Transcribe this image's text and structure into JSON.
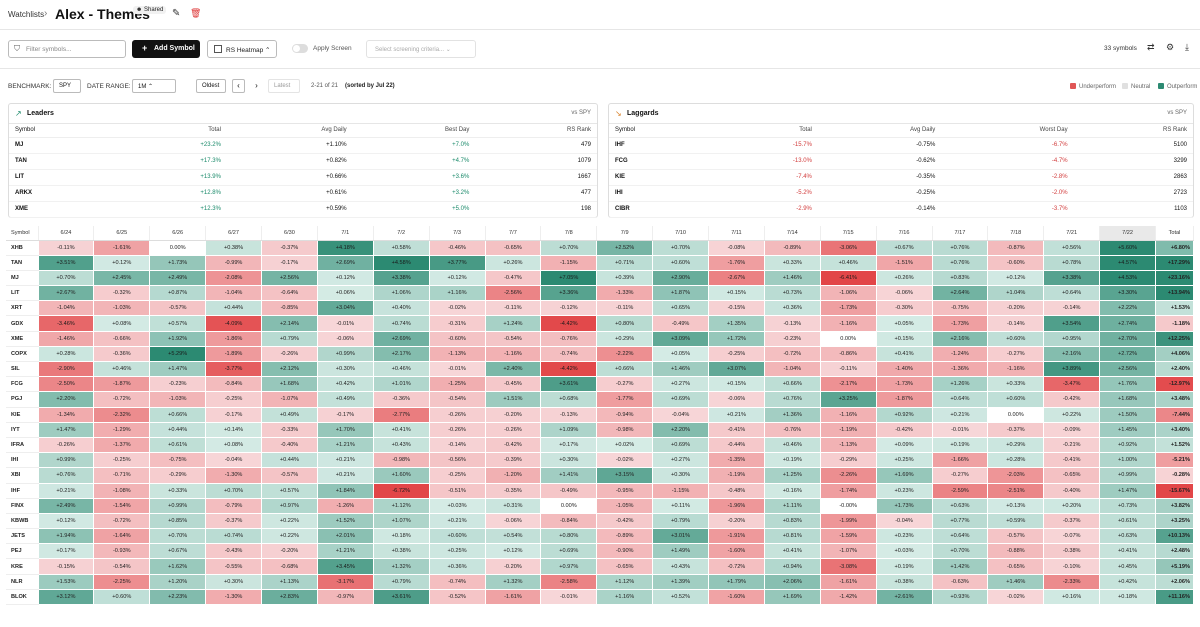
{
  "header": {
    "breadcrumb": "Watchlists",
    "title": "Alex - Themes",
    "shared_badge": "Shared"
  },
  "toolbar": {
    "filter_placeholder": "Filter symbols...",
    "add_symbol": "Add Symbol",
    "rs_heatmap": "RS Heatmap",
    "apply_screen": "Apply Screen",
    "screening_placeholder": "Select screening criteria...",
    "symbol_count": "33 symbols"
  },
  "benchmark": {
    "label": "BENCHMARK:",
    "value": "SPY",
    "date_range_label": "DATE RANGE:",
    "date_range": "1M",
    "oldest": "Oldest",
    "latest": "Latest",
    "range_info": "2-21 of 21",
    "sorted": "(sorted by Jul 22)"
  },
  "legend": {
    "under": "Underperform",
    "neutral": "Neutral",
    "out": "Outperform",
    "under_color": "#e05656",
    "neutral_color": "#e0e0e0",
    "out_color": "#2c8a72"
  },
  "leaders": {
    "title": "Leaders",
    "vs": "vs SPY",
    "headers": [
      "Symbol",
      "Total",
      "Avg Daily",
      "Best Day",
      "RS Rank"
    ],
    "rows": [
      [
        "MJ",
        "+23.2%",
        "+1.10%",
        "+7.0%",
        "479"
      ],
      [
        "TAN",
        "+17.3%",
        "+0.82%",
        "+4.7%",
        "1079"
      ],
      [
        "LIT",
        "+13.9%",
        "+0.66%",
        "+3.6%",
        "1667"
      ],
      [
        "ARKX",
        "+12.8%",
        "+0.61%",
        "+3.2%",
        "477"
      ],
      [
        "XME",
        "+12.3%",
        "+0.59%",
        "+5.0%",
        "198"
      ]
    ]
  },
  "laggards": {
    "title": "Laggards",
    "vs": "vs SPY",
    "headers": [
      "Symbol",
      "Total",
      "Avg Daily",
      "Worst Day",
      "RS Rank"
    ],
    "rows": [
      [
        "IHF",
        "-15.7%",
        "-0.75%",
        "-6.7%",
        "5100"
      ],
      [
        "FCG",
        "-13.0%",
        "-0.62%",
        "-4.7%",
        "3299"
      ],
      [
        "KIE",
        "-7.4%",
        "-0.35%",
        "-2.8%",
        "2863"
      ],
      [
        "IHI",
        "-5.2%",
        "-0.25%",
        "-2.0%",
        "2723"
      ],
      [
        "CIBR",
        "-2.9%",
        "-0.14%",
        "-3.7%",
        "1103"
      ]
    ]
  },
  "heatmap": {
    "symbol_header": "Symbol",
    "total_header": "Total",
    "dates": [
      "6/24",
      "6/25",
      "6/26",
      "6/27",
      "6/30",
      "7/1",
      "7/2",
      "7/3",
      "7/7",
      "7/8",
      "7/9",
      "7/10",
      "7/11",
      "7/14",
      "7/15",
      "7/16",
      "7/17",
      "7/18",
      "7/21",
      "7/22"
    ],
    "rows": [
      {
        "s": "XHB",
        "v": [
          "-0.11%",
          "-1.61%",
          "0.00%",
          "+0.38%",
          "-0.37%",
          "+4.18%",
          "+0.58%",
          "-0.46%",
          "-0.65%",
          "+0.70%",
          "+2.52%",
          "+0.70%",
          "-0.08%",
          "-0.89%",
          "-3.06%",
          "+0.67%",
          "+0.76%",
          "-0.87%",
          "+0.56%",
          "+5.60%"
        ],
        "t": "+6.80%"
      },
      {
        "s": "TAN",
        "v": [
          "+3.51%",
          "+0.12%",
          "+1.73%",
          "-0.99%",
          "-0.17%",
          "+2.69%",
          "+4.58%",
          "+3.77%",
          "+0.26%",
          "-1.15%",
          "+0.71%",
          "+0.60%",
          "-1.76%",
          "+0.33%",
          "+0.46%",
          "-1.51%",
          "+0.76%",
          "-0.60%",
          "+0.78%",
          "+4.57%"
        ],
        "t": "+17.29%"
      },
      {
        "s": "MJ",
        "v": [
          "+0.70%",
          "+2.45%",
          "+2.49%",
          "-2.08%",
          "+2.56%",
          "+0.12%",
          "+3.38%",
          "+0.12%",
          "-0.47%",
          "+7.05%",
          "+0.39%",
          "+2.90%",
          "-2.67%",
          "+1.46%",
          "-6.41%",
          "+0.26%",
          "+0.83%",
          "+0.12%",
          "+3.38%",
          "+4.53%"
        ],
        "t": "+23.16%"
      },
      {
        "s": "LIT",
        "v": [
          "+2.67%",
          "-0.32%",
          "+0.87%",
          "-1.04%",
          "-0.64%",
          "+0.06%",
          "+1.06%",
          "+1.16%",
          "-2.56%",
          "+3.36%",
          "-1.33%",
          "+1.87%",
          "+0.15%",
          "+0.73%",
          "-1.06%",
          "-0.06%",
          "+2.64%",
          "+1.04%",
          "+0.64%",
          "+3.30%"
        ],
        "t": "+13.94%"
      },
      {
        "s": "XRT",
        "v": [
          "-1.04%",
          "-1.03%",
          "-0.57%",
          "+0.44%",
          "-0.85%",
          "+3.04%",
          "+0.40%",
          "-0.02%",
          "-0.11%",
          "-0.12%",
          "-0.11%",
          "+0.65%",
          "-0.15%",
          "+0.36%",
          "-1.73%",
          "-0.30%",
          "-0.75%",
          "-0.20%",
          "-0.14%",
          "+2.22%"
        ],
        "t": "+1.53%"
      },
      {
        "s": "GDX",
        "v": [
          "-3.46%",
          "+0.08%",
          "+0.57%",
          "-4.09%",
          "+2.14%",
          "-0.01%",
          "+0.74%",
          "-0.31%",
          "+1.24%",
          "-4.42%",
          "+0.80%",
          "-0.49%",
          "+1.35%",
          "-0.13%",
          "-1.16%",
          "+0.05%",
          "-1.73%",
          "-0.14%",
          "+3.54%",
          "+2.74%"
        ],
        "t": "-1.18%"
      },
      {
        "s": "XME",
        "v": [
          "-1.46%",
          "-0.66%",
          "+1.92%",
          "-1.86%",
          "+0.79%",
          "-0.06%",
          "+2.69%",
          "-0.60%",
          "-0.54%",
          "-0.76%",
          "+0.29%",
          "+3.09%",
          "+1.72%",
          "-0.23%",
          "0.00%",
          "+0.15%",
          "+2.16%",
          "+0.60%",
          "+0.95%",
          "+2.70%"
        ],
        "t": "+12.25%"
      },
      {
        "s": "COPX",
        "v": [
          "+0.28%",
          "-0.36%",
          "+5.29%",
          "-1.89%",
          "-0.26%",
          "+0.99%",
          "+2.17%",
          "-1.13%",
          "-1.16%",
          "-0.74%",
          "-2.22%",
          "+0.05%",
          "-0.25%",
          "-0.72%",
          "-0.86%",
          "+0.41%",
          "-1.24%",
          "-0.27%",
          "+2.16%",
          "+2.72%"
        ],
        "t": "+4.06%"
      },
      {
        "s": "SIL",
        "v": [
          "-2.90%",
          "+0.46%",
          "+1.47%",
          "-3.77%",
          "+2.12%",
          "+0.30%",
          "+0.46%",
          "-0.01%",
          "+2.40%",
          "-4.42%",
          "+0.66%",
          "+1.46%",
          "+3.07%",
          "-1.04%",
          "-0.11%",
          "-1.40%",
          "-1.36%",
          "-1.16%",
          "+3.89%",
          "+2.56%"
        ],
        "t": "+2.40%"
      },
      {
        "s": "FCG",
        "v": [
          "-2.50%",
          "-1.87%",
          "-0.23%",
          "-0.84%",
          "+1.68%",
          "+0.42%",
          "+1.01%",
          "-1.25%",
          "-0.45%",
          "+3.61%",
          "-0.27%",
          "+0.27%",
          "+0.15%",
          "+0.66%",
          "-2.17%",
          "-1.73%",
          "+1.26%",
          "+0.33%",
          "-3.47%",
          "+1.76%"
        ],
        "t": "-12.97%"
      },
      {
        "s": "PGJ",
        "v": [
          "+2.20%",
          "-0.72%",
          "-1.03%",
          "-0.25%",
          "-1.07%",
          "+0.49%",
          "-0.36%",
          "-0.54%",
          "+1.51%",
          "+0.68%",
          "-1.77%",
          "+0.69%",
          "-0.06%",
          "+0.76%",
          "+3.25%",
          "-1.87%",
          "+0.64%",
          "+0.60%",
          "-0.42%",
          "+1.68%"
        ],
        "t": "+3.48%"
      },
      {
        "s": "KIE",
        "v": [
          "-1.34%",
          "-2.32%",
          "+0.66%",
          "-0.17%",
          "+0.49%",
          "-0.17%",
          "-2.77%",
          "-0.26%",
          "-0.20%",
          "-0.13%",
          "-0.94%",
          "-0.04%",
          "+0.21%",
          "+1.36%",
          "-1.16%",
          "+0.92%",
          "+0.21%",
          "0.00%",
          "+0.22%",
          "+1.50%"
        ],
        "t": "-7.44%"
      },
      {
        "s": "IYT",
        "v": [
          "+1.47%",
          "-1.29%",
          "+0.44%",
          "+0.14%",
          "-0.33%",
          "+1.70%",
          "+0.41%",
          "-0.26%",
          "-0.26%",
          "+1.09%",
          "-0.98%",
          "+2.20%",
          "-0.41%",
          "-0.76%",
          "-1.19%",
          "-0.42%",
          "-0.01%",
          "-0.37%",
          "-0.09%",
          "+1.45%"
        ],
        "t": "+3.40%"
      },
      {
        "s": "IFRA",
        "v": [
          "-0.26%",
          "-1.37%",
          "+0.61%",
          "+0.08%",
          "-0.40%",
          "+1.21%",
          "+0.43%",
          "-0.14%",
          "-0.42%",
          "+0.17%",
          "+0.02%",
          "+0.69%",
          "-0.44%",
          "+0.46%",
          "-1.13%",
          "+0.09%",
          "+0.19%",
          "+0.29%",
          "-0.21%",
          "+0.92%"
        ],
        "t": "+1.52%"
      },
      {
        "s": "IHI",
        "v": [
          "+0.99%",
          "-0.25%",
          "-0.75%",
          "-0.04%",
          "+0.44%",
          "+0.21%",
          "-0.98%",
          "-0.56%",
          "-0.39%",
          "+0.30%",
          "-0.02%",
          "+0.27%",
          "-1.35%",
          "+0.19%",
          "-0.29%",
          "+0.25%",
          "-1.66%",
          "+0.28%",
          "-0.41%",
          "+1.00%"
        ],
        "t": "-5.21%"
      },
      {
        "s": "XBI",
        "v": [
          "+0.76%",
          "-0.71%",
          "-0.29%",
          "-1.30%",
          "-0.57%",
          "+0.21%",
          "+1.60%",
          "-0.25%",
          "-1.20%",
          "+1.41%",
          "+3.15%",
          "+0.30%",
          "-1.19%",
          "+1.25%",
          "-2.26%",
          "+1.69%",
          "-0.27%",
          "-2.03%",
          "-0.65%",
          "+0.99%"
        ],
        "t": "-0.28%"
      },
      {
        "s": "IHF",
        "v": [
          "+0.21%",
          "-1.08%",
          "+0.33%",
          "+0.70%",
          "+0.57%",
          "+1.84%",
          "-6.72%",
          "-0.51%",
          "-0.35%",
          "-0.49%",
          "-0.95%",
          "-1.15%",
          "-0.48%",
          "+0.16%",
          "-1.74%",
          "+0.23%",
          "-2.59%",
          "-2.51%",
          "-0.40%",
          "+1.47%"
        ],
        "t": "-15.67%"
      },
      {
        "s": "FINX",
        "v": [
          "+2.49%",
          "-1.54%",
          "+0.99%",
          "-0.79%",
          "+0.97%",
          "-1.26%",
          "+1.12%",
          "+0.03%",
          "+0.31%",
          "0.00%",
          "-1.05%",
          "+0.11%",
          "-1.96%",
          "+1.11%",
          "-0.00%",
          "+1.73%",
          "+0.63%",
          "+0.13%",
          "+0.20%",
          "+0.73%"
        ],
        "t": "+3.82%"
      },
      {
        "s": "KBWB",
        "v": [
          "+0.12%",
          "-0.72%",
          "+0.85%",
          "-0.37%",
          "+0.22%",
          "+1.52%",
          "+1.07%",
          "+0.21%",
          "-0.06%",
          "-0.84%",
          "-0.42%",
          "+0.79%",
          "-0.20%",
          "+0.83%",
          "-1.99%",
          "-0.04%",
          "+0.77%",
          "+0.59%",
          "-0.37%",
          "+0.61%"
        ],
        "t": "+3.25%"
      },
      {
        "s": "JETS",
        "v": [
          "+1.94%",
          "-1.64%",
          "+0.70%",
          "+0.74%",
          "+0.22%",
          "+2.01%",
          "+0.18%",
          "+0.60%",
          "+0.54%",
          "+0.80%",
          "-0.89%",
          "+3.01%",
          "-1.91%",
          "+0.81%",
          "-1.59%",
          "+0.23%",
          "+0.64%",
          "-0.57%",
          "-0.07%",
          "+0.63%"
        ],
        "t": "+10.13%"
      },
      {
        "s": "PEJ",
        "v": [
          "+0.17%",
          "-0.93%",
          "+0.67%",
          "-0.43%",
          "-0.20%",
          "+1.21%",
          "+0.38%",
          "+0.25%",
          "+0.12%",
          "+0.69%",
          "-0.90%",
          "+1.49%",
          "-1.60%",
          "+0.41%",
          "-1.07%",
          "+0.03%",
          "+0.70%",
          "-0.88%",
          "-0.38%",
          "+0.41%"
        ],
        "t": "+2.48%"
      },
      {
        "s": "KRE",
        "v": [
          "-0.15%",
          "-0.54%",
          "+1.62%",
          "-0.55%",
          "-0.68%",
          "+3.45%",
          "+1.32%",
          "+0.36%",
          "-0.20%",
          "+0.97%",
          "-0.65%",
          "+0.43%",
          "-0.72%",
          "+0.94%",
          "-3.08%",
          "+0.19%",
          "+1.42%",
          "-0.65%",
          "-0.10%",
          "+0.45%"
        ],
        "t": "+5.19%"
      },
      {
        "s": "NLR",
        "v": [
          "+1.53%",
          "-2.25%",
          "+1.20%",
          "+0.30%",
          "+1.13%",
          "-3.17%",
          "+0.79%",
          "-0.74%",
          "+1.32%",
          "-2.58%",
          "+1.12%",
          "+1.39%",
          "+1.79%",
          "+2.06%",
          "-1.61%",
          "+0.38%",
          "-0.63%",
          "+1.46%",
          "-2.33%",
          "+0.42%"
        ],
        "t": "+2.06%"
      },
      {
        "s": "BLOK",
        "v": [
          "+3.12%",
          "+0.60%",
          "+2.23%",
          "-1.30%",
          "+2.83%",
          "-0.97%",
          "+3.61%",
          "-0.52%",
          "-1.61%",
          "-0.01%",
          "+1.16%",
          "+0.52%",
          "-1.60%",
          "+1.69%",
          "-1.42%",
          "+2.61%",
          "+0.93%",
          "-0.02%",
          "+0.16%",
          "+0.18%"
        ],
        "t": "+11.16%"
      }
    ]
  }
}
